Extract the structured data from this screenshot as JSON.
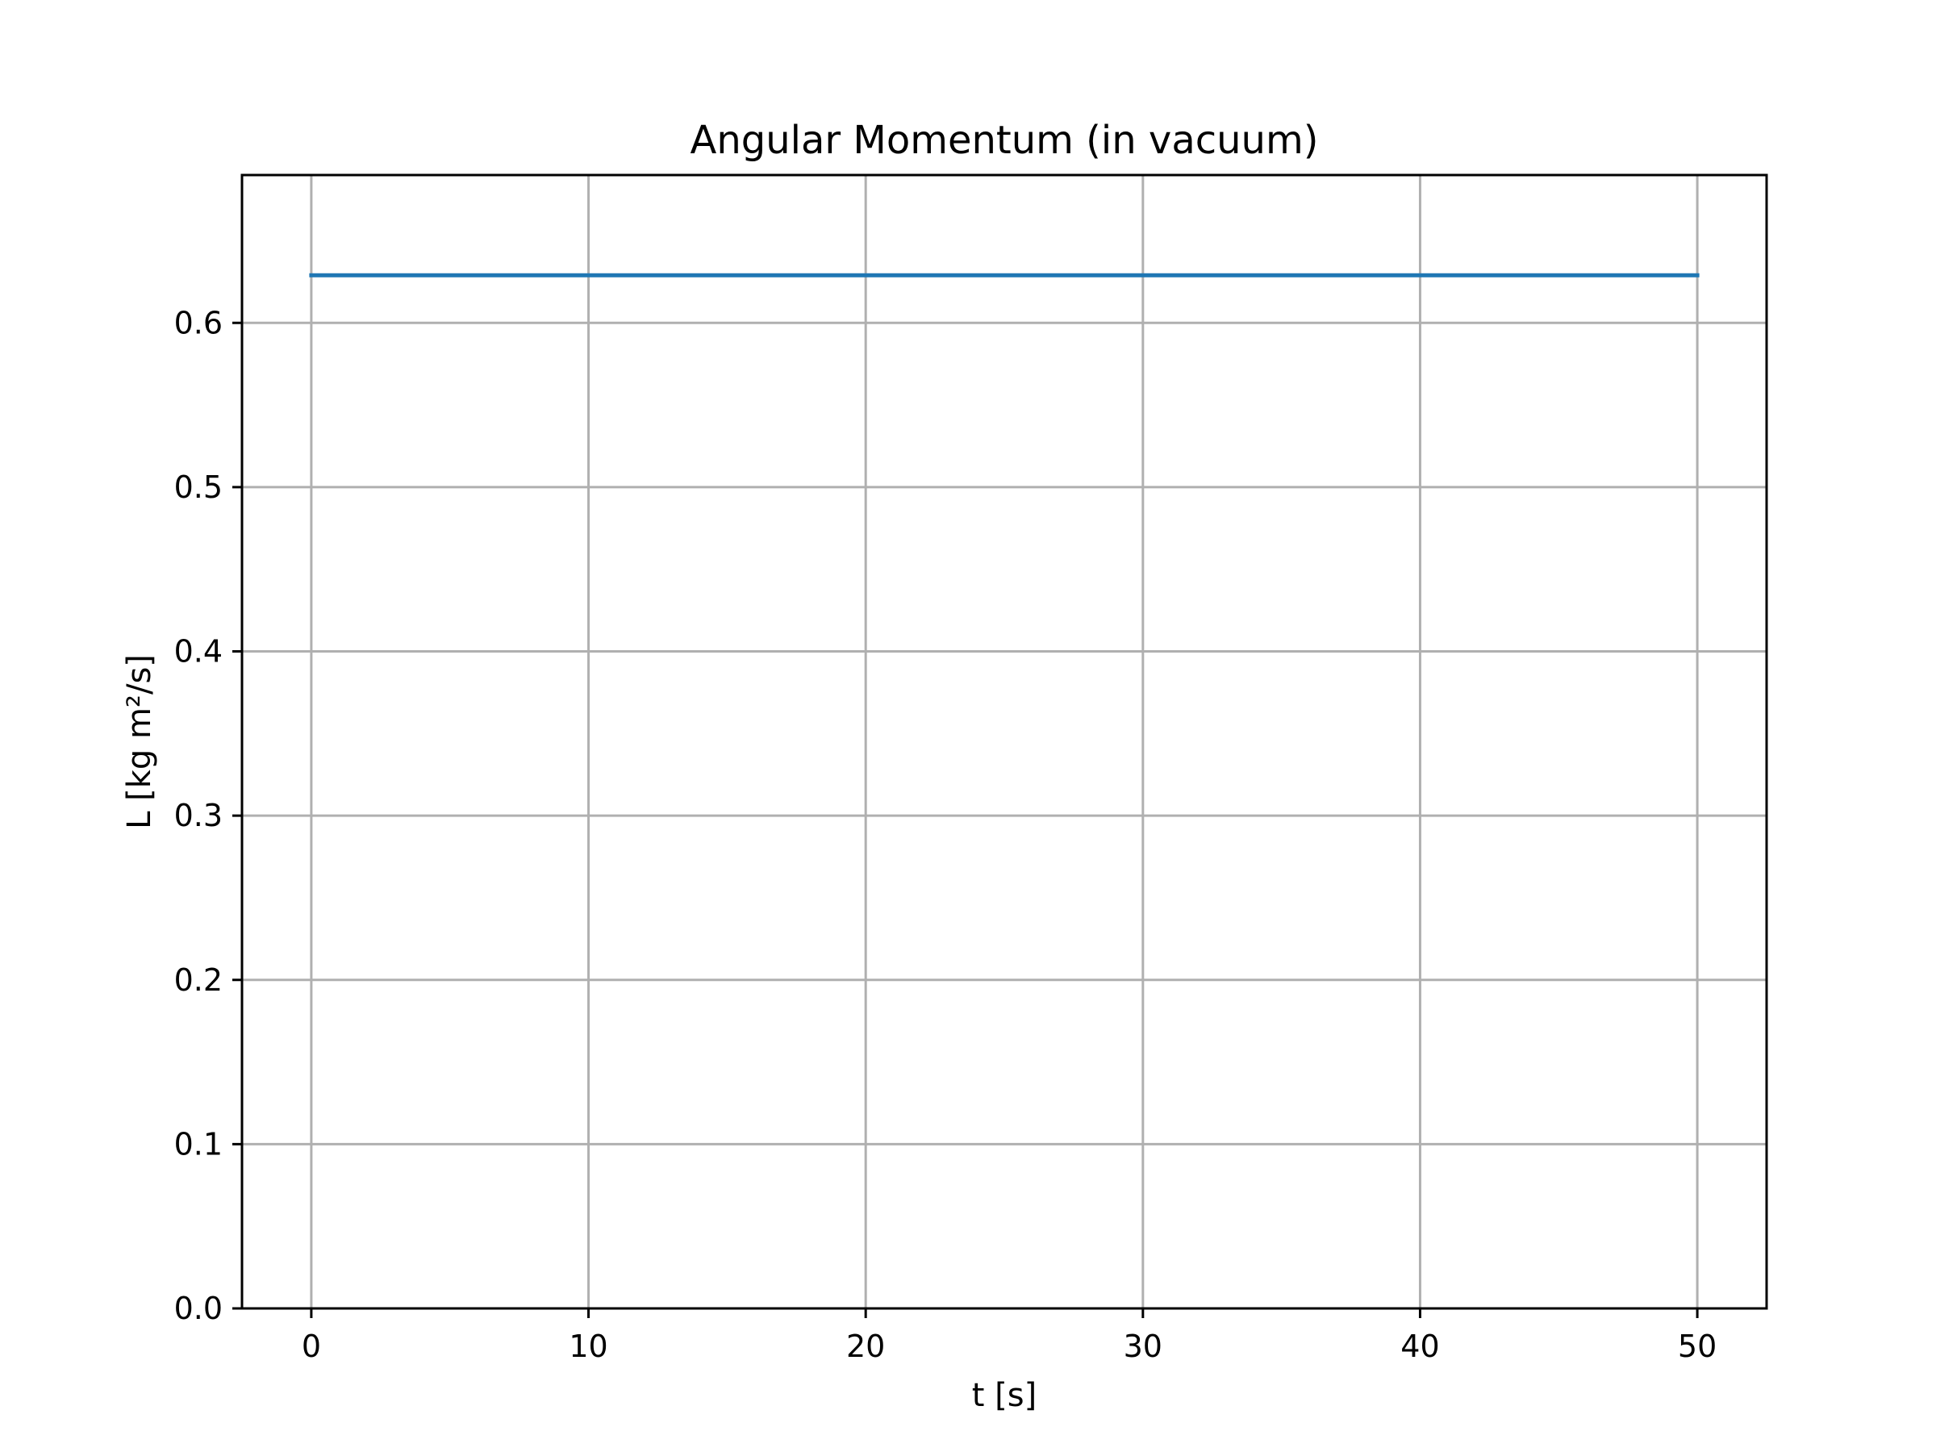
{
  "chart_data": {
    "type": "line",
    "title": "Angular Momentum (in vacuum)",
    "xlabel": "t [s]",
    "ylabel": "L [kg m²/s]",
    "xlim": [
      -2.5,
      52.5
    ],
    "ylim": [
      0.0,
      0.69
    ],
    "x_ticks": [
      0,
      10,
      20,
      30,
      40,
      50
    ],
    "x_tick_labels": [
      "0",
      "10",
      "20",
      "30",
      "40",
      "50"
    ],
    "y_ticks": [
      0.0,
      0.1,
      0.2,
      0.3,
      0.4,
      0.5,
      0.6
    ],
    "y_tick_labels": [
      "0.0",
      "0.1",
      "0.2",
      "0.3",
      "0.4",
      "0.5",
      "0.6"
    ],
    "grid": true,
    "series": [
      {
        "color": "#1f77b4",
        "x": [
          0,
          10,
          20,
          30,
          40,
          50
        ],
        "y": [
          0.629,
          0.629,
          0.629,
          0.629,
          0.629,
          0.629
        ]
      }
    ]
  }
}
